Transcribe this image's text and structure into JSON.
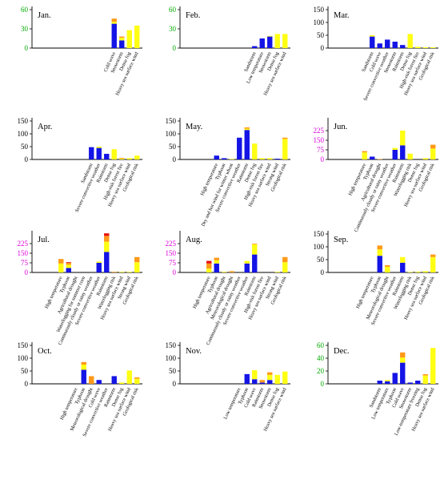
{
  "colors": {
    "blue": "#1414e6",
    "yellow": "#ffff14",
    "orange": "#ff9919",
    "red": "#e60f0f",
    "axis": "#000000"
  },
  "chart_data": [
    {
      "type": "bar",
      "stacked": true,
      "title": "Jan.",
      "tick_color": "#00aa00",
      "ylim": [
        0,
        60
      ],
      "yticks": [
        0,
        30,
        60
      ],
      "categories": [
        "Cold wave",
        "Snowstorm",
        "Dense fog",
        "Heavy sea surface wind"
      ],
      "series": [
        {
          "color": "blue",
          "values": [
            38,
            12,
            0,
            0
          ]
        },
        {
          "color": "yellow",
          "values": [
            3,
            4,
            28,
            35
          ]
        },
        {
          "color": "orange",
          "values": [
            5,
            2,
            0,
            0
          ]
        }
      ]
    },
    {
      "type": "bar",
      "stacked": true,
      "title": "Feb.",
      "tick_color": "#00aa00",
      "ylim": [
        0,
        60
      ],
      "yticks": [
        0,
        30,
        60
      ],
      "categories": [
        "Sandstorm",
        "Low temperature",
        "Snowstorm",
        "Dense fog",
        "Heavy sea surface wind"
      ],
      "series": [
        {
          "color": "blue",
          "values": [
            3,
            15,
            18,
            0,
            0
          ]
        },
        {
          "color": "yellow",
          "values": [
            0,
            0,
            1,
            22,
            22
          ]
        }
      ]
    },
    {
      "type": "bar",
      "stacked": true,
      "title": "Mar.",
      "tick_color": "#000000",
      "ylim": [
        0,
        150
      ],
      "yticks": [
        0,
        50,
        100,
        150
      ],
      "categories": [
        "Sandstorm",
        "Cold wave",
        "Severe convective weather",
        "Snowstorm",
        "Rainstorm",
        "Dense fog",
        "High-risk forest fire",
        "Heavy sea surface wind",
        "Geological risk"
      ],
      "series": [
        {
          "color": "blue",
          "values": [
            45,
            18,
            33,
            25,
            12,
            0,
            0,
            0,
            0
          ]
        },
        {
          "color": "yellow",
          "values": [
            5,
            0,
            0,
            0,
            0,
            55,
            5,
            3,
            3
          ]
        }
      ]
    },
    {
      "type": "bar",
      "stacked": true,
      "title": "Apr.",
      "tick_color": "#000000",
      "ylim": [
        0,
        150
      ],
      "yticks": [
        0,
        50,
        100,
        150
      ],
      "categories": [
        "Sandstorm",
        "Severe convective weather",
        "Rainstorm",
        "Dense fog",
        "High-risk forest fire",
        "Heavy sea surface wind",
        "Geological risk"
      ],
      "series": [
        {
          "color": "blue",
          "values": [
            48,
            45,
            22,
            0,
            0,
            0,
            0
          ]
        },
        {
          "color": "yellow",
          "values": [
            0,
            5,
            0,
            40,
            3,
            5,
            15
          ]
        },
        {
          "color": "orange",
          "values": [
            0,
            0,
            0,
            0,
            3,
            0,
            0
          ]
        }
      ]
    },
    {
      "type": "bar",
      "stacked": true,
      "title": "May.",
      "tick_color": "#000000",
      "ylim": [
        0,
        150
      ],
      "yticks": [
        0,
        50,
        100,
        150
      ],
      "categories": [
        "High temperature",
        "Typhoon",
        "Dry and hot wind for winter wheat",
        "Severe convective weather",
        "Rainstorm",
        "Dense fog",
        "High-risk forest fire",
        "Heavy sea surface wind",
        "Strong wind",
        "Geological risk"
      ],
      "series": [
        {
          "color": "blue",
          "values": [
            15,
            5,
            0,
            85,
            115,
            0,
            0,
            0,
            3,
            0
          ]
        },
        {
          "color": "yellow",
          "values": [
            0,
            0,
            2,
            0,
            5,
            62,
            5,
            5,
            0,
            80
          ]
        },
        {
          "color": "orange",
          "values": [
            0,
            0,
            0,
            0,
            5,
            0,
            0,
            0,
            0,
            5
          ]
        }
      ]
    },
    {
      "type": "bar",
      "stacked": true,
      "title": "Jun.",
      "tick_color": "#dd00dd",
      "ylim": [
        0,
        300
      ],
      "yticks": [
        0,
        75,
        150,
        225
      ],
      "categories": [
        "High temperature",
        "Typhoon",
        "Agricultural drought",
        "Continuously cloudy or rainy weather",
        "Severe convective weather",
        "Rainstorm",
        "Waterlogging risk",
        "Dense fog",
        "Heavy sea surface wind",
        "Geological risk"
      ],
      "series": [
        {
          "color": "blue",
          "values": [
            0,
            22,
            0,
            0,
            75,
            110,
            0,
            0,
            0,
            0
          ]
        },
        {
          "color": "yellow",
          "values": [
            55,
            0,
            0,
            0,
            15,
            115,
            45,
            0,
            10,
            85
          ]
        },
        {
          "color": "orange",
          "values": [
            10,
            0,
            3,
            0,
            0,
            0,
            0,
            0,
            0,
            30
          ]
        }
      ]
    },
    {
      "type": "bar",
      "stacked": true,
      "title": "Jul.",
      "tick_color": "#dd00dd",
      "ylim": [
        0,
        300
      ],
      "yticks": [
        0,
        75,
        150,
        225
      ],
      "categories": [
        "High temperature",
        "Typhoon",
        "Agricultural drought",
        "Waterlogging for summer corn",
        "Continuously cloudy or rainy weather",
        "Severe convective weather",
        "Rainstorm",
        "Waterlogging risk",
        "Heavy sea surface wind",
        "Strong wind",
        "Geological risk"
      ],
      "series": [
        {
          "color": "blue",
          "values": [
            0,
            35,
            0,
            0,
            0,
            75,
            160,
            0,
            0,
            0,
            0
          ]
        },
        {
          "color": "yellow",
          "values": [
            70,
            25,
            0,
            0,
            0,
            10,
            80,
            0,
            5,
            5,
            80
          ]
        },
        {
          "color": "orange",
          "values": [
            35,
            15,
            0,
            0,
            0,
            0,
            45,
            5,
            0,
            0,
            40
          ]
        },
        {
          "color": "red",
          "values": [
            0,
            5,
            0,
            0,
            0,
            0,
            20,
            0,
            0,
            0,
            0
          ]
        }
      ]
    },
    {
      "type": "bar",
      "stacked": true,
      "title": "Aug.",
      "tick_color": "#dd00dd",
      "ylim": [
        0,
        300
      ],
      "yticks": [
        0,
        75,
        150,
        225
      ],
      "categories": [
        "High temperature",
        "Typhoon",
        "Agricultural drought",
        "Meteorological drought",
        "Continuously cloudy or rainy weather",
        "Severe convective weather",
        "Rainstorm",
        "High-risk forest fire",
        "Heavy sea surface wind",
        "Strong wind",
        "Geological risk"
      ],
      "series": [
        {
          "color": "blue",
          "values": [
            0,
            70,
            0,
            0,
            0,
            70,
            140,
            0,
            0,
            0,
            0
          ]
        },
        {
          "color": "yellow",
          "values": [
            30,
            25,
            5,
            0,
            0,
            20,
            80,
            0,
            0,
            5,
            80
          ]
        },
        {
          "color": "orange",
          "values": [
            40,
            20,
            0,
            10,
            0,
            0,
            5,
            0,
            0,
            0,
            40
          ]
        },
        {
          "color": "red",
          "values": [
            20,
            0,
            0,
            0,
            0,
            0,
            0,
            0,
            0,
            0,
            0
          ]
        }
      ]
    },
    {
      "type": "bar",
      "stacked": true,
      "title": "Sep.",
      "tick_color": "#000000",
      "ylim": [
        0,
        150
      ],
      "yticks": [
        0,
        50,
        100,
        150
      ],
      "categories": [
        "High temperature",
        "Typhoon",
        "Meteorological drought",
        "Severe convective weather",
        "Rainstorm",
        "Waterlogging risk",
        "Dense fog",
        "Heavy sea surface wind",
        "Geological risk"
      ],
      "series": [
        {
          "color": "blue",
          "values": [
            0,
            65,
            0,
            0,
            38,
            0,
            0,
            0,
            0
          ]
        },
        {
          "color": "yellow",
          "values": [
            0,
            25,
            22,
            0,
            22,
            2,
            3,
            5,
            60
          ]
        },
        {
          "color": "orange",
          "values": [
            0,
            15,
            6,
            0,
            0,
            0,
            0,
            0,
            10
          ]
        }
      ]
    },
    {
      "type": "bar",
      "stacked": true,
      "title": "Oct.",
      "tick_color": "#000000",
      "ylim": [
        0,
        150
      ],
      "yticks": [
        0,
        50,
        100,
        150
      ],
      "categories": [
        "High temperature",
        "Typhoon",
        "Meteorological drought",
        "Cold wave",
        "Severe convective weather",
        "Rainstorm",
        "Dense fog",
        "Heavy sea surface wind",
        "Geological risk"
      ],
      "series": [
        {
          "color": "blue",
          "values": [
            0,
            55,
            0,
            15,
            0,
            30,
            0,
            0,
            0
          ]
        },
        {
          "color": "yellow",
          "values": [
            0,
            20,
            0,
            0,
            0,
            0,
            5,
            52,
            20
          ]
        },
        {
          "color": "orange",
          "values": [
            0,
            10,
            30,
            0,
            0,
            0,
            0,
            0,
            5
          ]
        }
      ]
    },
    {
      "type": "bar",
      "stacked": true,
      "title": "Nov.",
      "tick_color": "#000000",
      "ylim": [
        0,
        150
      ],
      "yticks": [
        0,
        50,
        100,
        150
      ],
      "categories": [
        "Low temperature",
        "Typhoon",
        "Cold wave",
        "Rainstorm",
        "Snowstorm",
        "Dense fog",
        "Heavy sea surface wind"
      ],
      "series": [
        {
          "color": "blue",
          "values": [
            0,
            38,
            18,
            5,
            15,
            0,
            0
          ]
        },
        {
          "color": "yellow",
          "values": [
            0,
            0,
            35,
            0,
            20,
            35,
            48
          ]
        },
        {
          "color": "orange",
          "values": [
            0,
            0,
            0,
            10,
            10,
            0,
            0
          ]
        }
      ]
    },
    {
      "type": "bar",
      "stacked": true,
      "title": "Dec.",
      "tick_color": "#00aa00",
      "ylim": [
        0,
        60
      ],
      "yticks": [
        0,
        20,
        40,
        60
      ],
      "categories": [
        "Sandstorm",
        "Low temperature",
        "Typhoon",
        "Cold wave",
        "Snowstorm",
        "Low-temperature freezing",
        "Dense fog",
        "Heavy sea surface wind"
      ],
      "series": [
        {
          "color": "blue",
          "values": [
            5,
            4,
            17,
            33,
            2,
            5,
            0,
            0
          ]
        },
        {
          "color": "yellow",
          "values": [
            0,
            2,
            0,
            8,
            0,
            0,
            13,
            56
          ]
        },
        {
          "color": "orange",
          "values": [
            0,
            0,
            0,
            8,
            0,
            0,
            2,
            0
          ]
        }
      ]
    }
  ]
}
